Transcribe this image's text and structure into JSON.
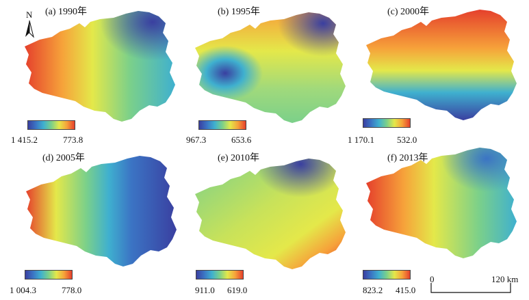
{
  "north_arrow": {
    "letter": "N",
    "icon": "north-arrow-icon"
  },
  "panels": [
    {
      "label": "(a) 1990年",
      "legend_left": "1 415.2",
      "legend_right": "773.8",
      "min": 773.8,
      "max": 1415.2,
      "pattern": "west-high"
    },
    {
      "label": "(b) 1995年",
      "legend_left": "967.3",
      "legend_right": "653.6",
      "min": 653.6,
      "max": 967.3,
      "pattern": "north-high-center-low"
    },
    {
      "label": "(c) 2000年",
      "legend_left": "1 170.1",
      "legend_right": "532.0",
      "min": 532.0,
      "max": 1170.1,
      "pattern": "north-high-south-low"
    },
    {
      "label": "(d) 2005年",
      "legend_left": "1 004.3",
      "legend_right": "778.0",
      "min": 778.0,
      "max": 1004.3,
      "pattern": "west-high-east-low"
    },
    {
      "label": "(e) 2010年",
      "legend_left": "911.0",
      "legend_right": "619.0",
      "min": 619.0,
      "max": 911.0,
      "pattern": "southeast-high-north-low"
    },
    {
      "label": "(f) 2013年",
      "legend_left": "823.2",
      "legend_right": "415.0",
      "min": 415.0,
      "max": 823.2,
      "pattern": "west-high-east-low"
    }
  ],
  "colors": {
    "low": "#3a3fa0",
    "mid_low": "#3fb0cf",
    "mid": "#e4e84a",
    "high": "#e5402c"
  },
  "scale_bar": {
    "start": "0",
    "end": "120 km"
  }
}
